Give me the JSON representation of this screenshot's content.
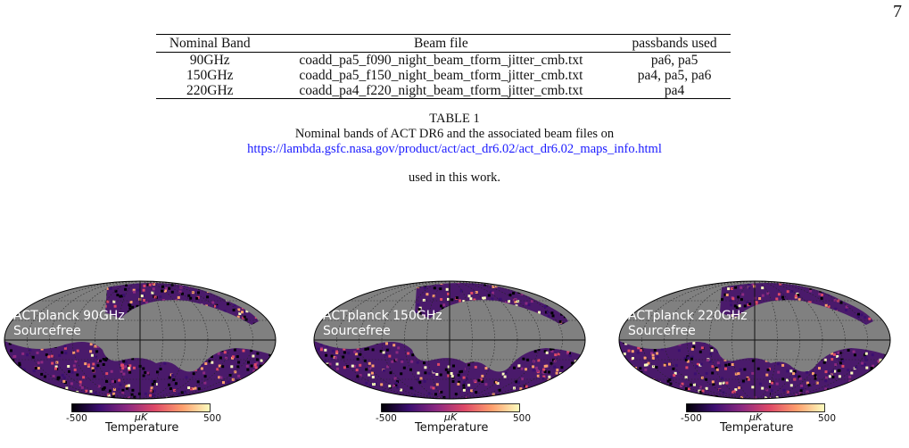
{
  "page_number": "7",
  "table": {
    "headers": [
      "Nominal Band",
      "Beam file",
      "passbands used"
    ],
    "rows": [
      [
        "90GHz",
        "coadd_pa5_f090_night_beam_tform_jitter_cmb.txt",
        "pa6, pa5"
      ],
      [
        "150GHz",
        "coadd_pa5_f150_night_beam_tform_jitter_cmb.txt",
        "pa4, pa5, pa6"
      ],
      [
        "220GHz",
        "coadd_pa4_f220_night_beam_tform_jitter_cmb.txt",
        "pa4"
      ]
    ]
  },
  "caption": {
    "label": "TABLE 1",
    "text": "Nominal bands of ACT DR6 and the associated beam files on",
    "link": "https://lambda.gsfc.nasa.gov/product/act/act_dr6.02/act_dr6.02_maps_info.html",
    "tail": "used in this work."
  },
  "maps": [
    {
      "title": "ACTplanck 90GHz",
      "subtitle": "Sourcefree",
      "cbar_min": "-500",
      "cbar_max": "500",
      "unit": "μK",
      "cbar_label": "Temperature"
    },
    {
      "title": "ACTplanck 150GHz",
      "subtitle": "Sourcefree",
      "cbar_min": "-500",
      "cbar_max": "500",
      "unit": "μK",
      "cbar_label": "Temperature"
    },
    {
      "title": "ACTplanck 220GHz",
      "subtitle": "Sourcefree",
      "cbar_min": "-500",
      "cbar_max": "500",
      "unit": "μK",
      "cbar_label": "Temperature"
    }
  ],
  "colors": {
    "mask": "#808080",
    "link": "#1a1aff",
    "colormap": [
      "#000004",
      "#3b0f70",
      "#8c2981",
      "#de4968",
      "#fe9f6d",
      "#fcfdbf"
    ]
  }
}
